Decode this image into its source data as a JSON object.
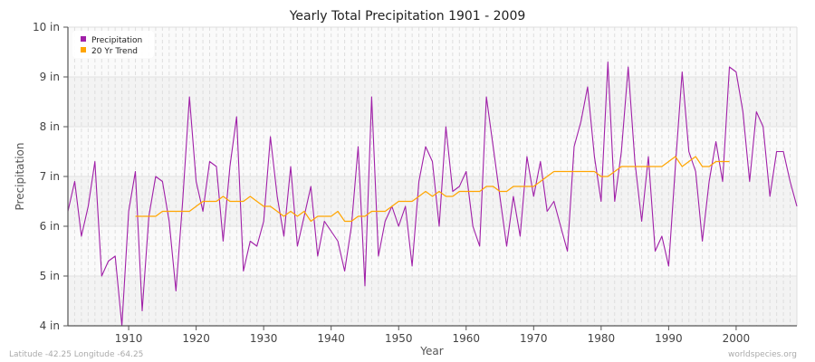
{
  "chart_data": {
    "type": "line",
    "title": "Yearly Total Precipitation 1901 - 2009",
    "xlabel": "Year",
    "ylabel": "Precipitation",
    "xlim": [
      1901,
      2009
    ],
    "ylim": [
      4,
      10
    ],
    "x_ticks": [
      1910,
      1920,
      1930,
      1940,
      1950,
      1960,
      1970,
      1980,
      1990,
      2000
    ],
    "y_ticks": [
      4,
      5,
      6,
      7,
      8,
      9,
      10
    ],
    "y_tick_labels": [
      "4 in",
      "5 in",
      "6 in",
      "7 in",
      "8 in",
      "9 in",
      "10 in"
    ],
    "grid": true,
    "legend_position": "top-left",
    "series": [
      {
        "name": "Precipitation",
        "color": "#a020a8",
        "start_year": 1901,
        "values": [
          6.3,
          6.9,
          5.8,
          6.4,
          7.3,
          5.0,
          5.3,
          5.4,
          4.0,
          6.3,
          7.1,
          4.3,
          6.2,
          7.0,
          6.9,
          6.1,
          4.7,
          6.5,
          8.6,
          6.9,
          6.3,
          7.3,
          7.2,
          5.7,
          7.2,
          8.2,
          5.1,
          5.7,
          5.6,
          6.1,
          7.8,
          6.6,
          5.8,
          7.2,
          5.6,
          6.2,
          6.8,
          5.4,
          6.1,
          5.9,
          5.7,
          5.1,
          6.0,
          7.6,
          4.8,
          8.6,
          5.4,
          6.1,
          6.4,
          6.0,
          6.4,
          5.2,
          6.9,
          7.6,
          7.3,
          6.0,
          8.0,
          6.7,
          6.8,
          7.1,
          6.0,
          5.6,
          8.6,
          7.6,
          6.6,
          5.6,
          6.6,
          5.8,
          7.4,
          6.6,
          7.3,
          6.3,
          6.5,
          6.0,
          5.5,
          7.6,
          8.1,
          8.8,
          7.4,
          6.5,
          9.3,
          6.5,
          7.5,
          9.2,
          7.3,
          6.1,
          7.4,
          5.5,
          5.8,
          5.2,
          7.2,
          9.1,
          7.5,
          7.1,
          5.7,
          6.9,
          7.7,
          6.9,
          9.2,
          9.1,
          8.3,
          6.9,
          8.3,
          8.0,
          6.6,
          7.5,
          7.5,
          6.9,
          6.4
        ]
      },
      {
        "name": "20 Yr Trend",
        "color": "#ffa500",
        "start_year": 1911,
        "values": [
          6.2,
          6.2,
          6.2,
          6.2,
          6.3,
          6.3,
          6.3,
          6.3,
          6.3,
          6.4,
          6.5,
          6.5,
          6.5,
          6.6,
          6.5,
          6.5,
          6.5,
          6.6,
          6.5,
          6.4,
          6.4,
          6.3,
          6.2,
          6.3,
          6.2,
          6.3,
          6.1,
          6.2,
          6.2,
          6.2,
          6.3,
          6.1,
          6.1,
          6.2,
          6.2,
          6.3,
          6.3,
          6.3,
          6.4,
          6.5,
          6.5,
          6.5,
          6.6,
          6.7,
          6.6,
          6.7,
          6.6,
          6.6,
          6.7,
          6.7,
          6.7,
          6.7,
          6.8,
          6.8,
          6.7,
          6.7,
          6.8,
          6.8,
          6.8,
          6.8,
          6.9,
          7.0,
          7.1,
          7.1,
          7.1,
          7.1,
          7.1,
          7.1,
          7.1,
          7.0,
          7.0,
          7.1,
          7.2,
          7.2,
          7.2,
          7.2,
          7.2,
          7.2,
          7.2,
          7.3,
          7.4,
          7.2,
          7.3,
          7.4,
          7.2,
          7.2,
          7.3,
          7.3,
          7.3
        ]
      }
    ]
  },
  "footer": {
    "location": "Latitude -42.25 Longitude -64.25",
    "source": "worldspecies.org"
  }
}
